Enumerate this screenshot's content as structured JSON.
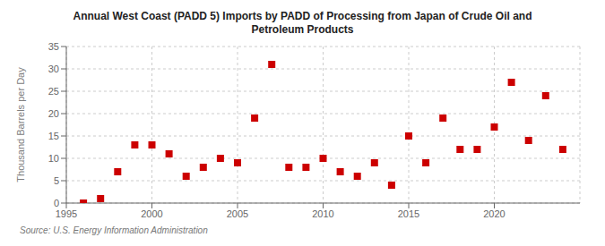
{
  "chart_data": {
    "type": "scatter",
    "title": "Annual West Coast (PADD 5) Imports by PADD of Processing from Japan of Crude Oil and\nPetroleum Products",
    "ylabel": "Thousand Barrels per Day",
    "annotations": [
      "Source: U.S. Energy Information Administration"
    ],
    "x": [
      1996,
      1997,
      1998,
      1999,
      2000,
      2001,
      2002,
      2003,
      2004,
      2005,
      2006,
      2007,
      2008,
      2009,
      2010,
      2011,
      2012,
      2013,
      2014,
      2015,
      2016,
      2017,
      2018,
      2019,
      2020,
      2021,
      2022,
      2023,
      2024
    ],
    "values": [
      0,
      1,
      7,
      13,
      13,
      11,
      6,
      8,
      10,
      9,
      19,
      31,
      8,
      8,
      10,
      7,
      6,
      9,
      4,
      15,
      9,
      19,
      12,
      12,
      17,
      27,
      14,
      24,
      12
    ],
    "color": "#cc0000",
    "marker": "square",
    "xlim": [
      1995,
      2025
    ],
    "xticks": [
      1995,
      2000,
      2005,
      2010,
      2015,
      2020
    ],
    "ylim": [
      0,
      35
    ],
    "yticks": [
      0,
      5,
      10,
      15,
      20,
      25,
      30,
      35
    ],
    "grid": true
  }
}
